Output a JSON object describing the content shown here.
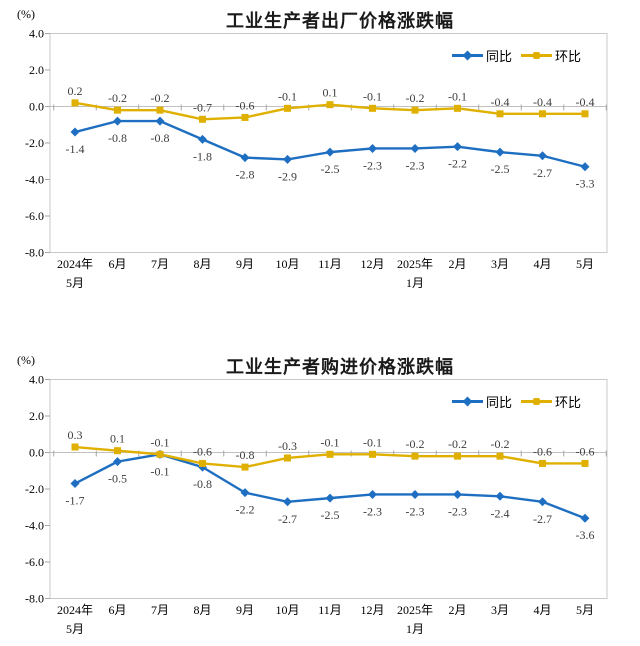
{
  "colors": {
    "tongbi_blue": "#1E6FC2",
    "huanbi_gold": "#E0B000",
    "data_label": "#3d3d3d",
    "axis_text": "#000000",
    "plot_border": "#c9c9c9",
    "zero_line": "#c0c0c0",
    "tick": "#a6a6a6"
  },
  "chart_data": [
    {
      "type": "line",
      "title": "工业生产者出厂价格涨跌幅",
      "unit": "(%)",
      "ylim": [
        -8.0,
        4.0
      ],
      "grid": false,
      "legend_position": "top-right",
      "y_ticks": [
        "4.0",
        "2.0",
        "0.0",
        "-2.0",
        "-4.0",
        "-6.0",
        "-8.0"
      ],
      "x_labels": [
        [
          "2024年",
          "5月"
        ],
        [
          "6月"
        ],
        [
          "7月"
        ],
        [
          "8月"
        ],
        [
          "9月"
        ],
        [
          "10月"
        ],
        [
          "11月"
        ],
        [
          "12月"
        ],
        [
          "2025年",
          "1月"
        ],
        [
          "2月"
        ],
        [
          "3月"
        ],
        [
          "4月"
        ],
        [
          "5月"
        ]
      ],
      "series": [
        {
          "name": "同比",
          "marker": "diamond",
          "color_key": "tongbi_blue",
          "label_side": "below",
          "values": [
            -1.4,
            -0.8,
            -0.8,
            -1.8,
            -2.8,
            -2.9,
            -2.5,
            -2.3,
            -2.3,
            -2.2,
            -2.5,
            -2.7,
            -3.3
          ]
        },
        {
          "name": "环比",
          "marker": "square",
          "color_key": "huanbi_gold",
          "label_side": "above",
          "values": [
            0.2,
            -0.2,
            -0.2,
            -0.7,
            -0.6,
            -0.1,
            0.1,
            -0.1,
            -0.2,
            -0.1,
            -0.4,
            -0.4,
            -0.4
          ]
        }
      ]
    },
    {
      "type": "line",
      "title": "工业生产者购进价格涨跌幅",
      "unit": "(%)",
      "ylim": [
        -8.0,
        4.0
      ],
      "grid": false,
      "legend_position": "top-right",
      "y_ticks": [
        "4.0",
        "2.0",
        "0.0",
        "-2.0",
        "-4.0",
        "-6.0",
        "-8.0"
      ],
      "x_labels": [
        [
          "2024年",
          "5月"
        ],
        [
          "6月"
        ],
        [
          "7月"
        ],
        [
          "8月"
        ],
        [
          "9月"
        ],
        [
          "10月"
        ],
        [
          "11月"
        ],
        [
          "12月"
        ],
        [
          "2025年",
          "1月"
        ],
        [
          "2月"
        ],
        [
          "3月"
        ],
        [
          "4月"
        ],
        [
          "5月"
        ]
      ],
      "series": [
        {
          "name": "同比",
          "marker": "diamond",
          "color_key": "tongbi_blue",
          "label_side": "below",
          "values": [
            -1.7,
            -0.5,
            -0.1,
            -0.8,
            -2.2,
            -2.7,
            -2.5,
            -2.3,
            -2.3,
            -2.3,
            -2.4,
            -2.7,
            -3.6
          ]
        },
        {
          "name": "环比",
          "marker": "square",
          "color_key": "huanbi_gold",
          "label_side": "above",
          "values": [
            0.3,
            0.1,
            -0.1,
            -0.6,
            -0.8,
            -0.3,
            -0.1,
            -0.1,
            -0.2,
            -0.2,
            -0.2,
            -0.6,
            -0.6
          ]
        }
      ]
    }
  ]
}
